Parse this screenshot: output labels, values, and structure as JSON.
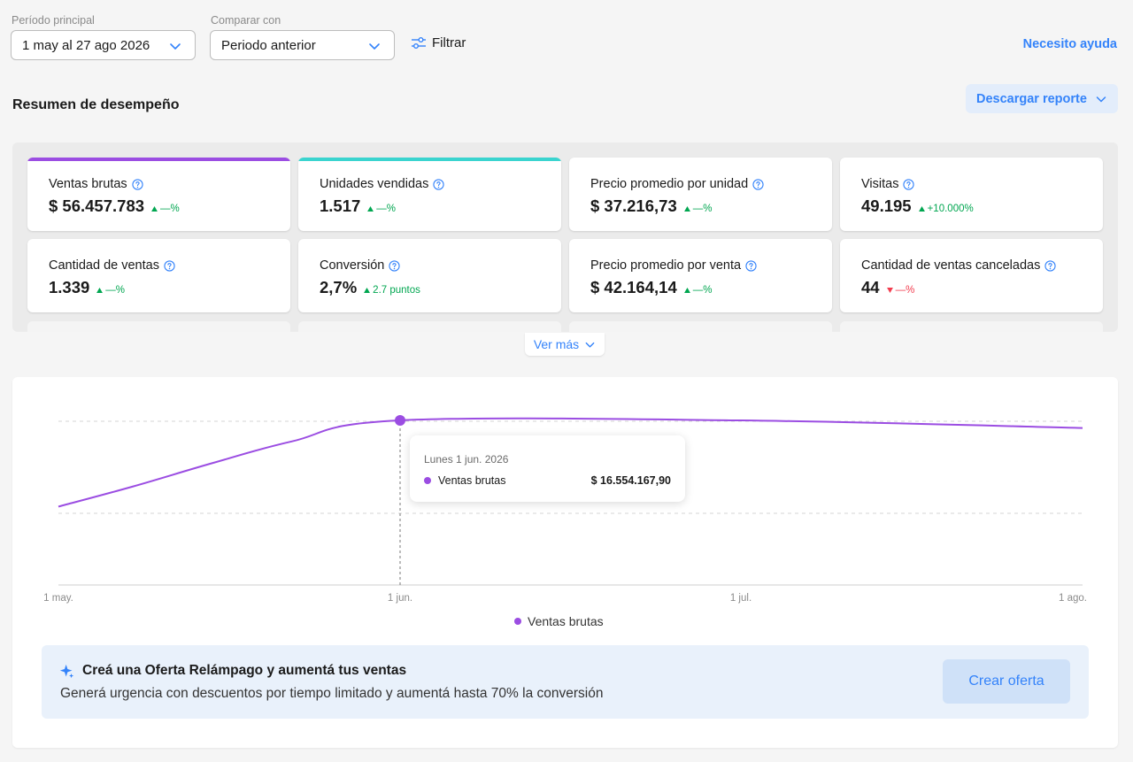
{
  "filters": {
    "period_label": "Período principal",
    "period_value": "1 may al 27 ago 2026",
    "compare_label": "Comparar con",
    "compare_value": "Periodo anterior",
    "filter_label": "Filtrar",
    "help_label": "Necesito ayuda"
  },
  "summary": {
    "title": "Resumen de desempeño",
    "download_label": "Descargar reporte"
  },
  "metrics": [
    {
      "label": "Ventas brutas",
      "value": "$ 56.457.783",
      "delta": "—%",
      "trend": "up",
      "accent": "#9b4de2"
    },
    {
      "label": "Unidades vendidas",
      "value": "1.517",
      "delta": "—%",
      "trend": "up",
      "accent": "#3ad4cf"
    },
    {
      "label": "Precio promedio por unidad",
      "value": "$ 37.216,73",
      "delta": "—%",
      "trend": "up",
      "accent": ""
    },
    {
      "label": "Visitas",
      "value": "49.195",
      "delta": "+10.000%",
      "trend": "up",
      "accent": ""
    },
    {
      "label": "Cantidad de ventas",
      "value": "1.339",
      "delta": "—%",
      "trend": "up",
      "accent": ""
    },
    {
      "label": "Conversión",
      "value": "2,7%",
      "delta": "2.7 puntos",
      "trend": "up",
      "accent": ""
    },
    {
      "label": "Precio promedio por venta",
      "value": "$ 42.164,14",
      "delta": "—%",
      "trend": "up",
      "accent": ""
    },
    {
      "label": "Cantidad de ventas canceladas",
      "value": "44",
      "delta": "—%",
      "trend": "down",
      "accent": ""
    }
  ],
  "ver_mas_label": "Ver más",
  "colors": {
    "up": "#00a650",
    "down": "#f23d4f",
    "link": "#3483fa",
    "series": "#9b4de2"
  },
  "chart_data": {
    "type": "line",
    "x_ticks": [
      "1 may.",
      "1 jun.",
      "1 jul.",
      "1 ago."
    ],
    "series": [
      {
        "name": "Ventas brutas",
        "color": "#9b4de2",
        "points": [
          {
            "x": "1 may.",
            "y": 11400000
          },
          {
            "x": "8 may.",
            "y": 12600000
          },
          {
            "x": "15 may.",
            "y": 14000000
          },
          {
            "x": "22 may.",
            "y": 15300000
          },
          {
            "x": "1 jun.",
            "y": 16554167.9
          },
          {
            "x": "1 jul.",
            "y": 16550000
          },
          {
            "x": "1 ago.",
            "y": 16100000
          }
        ]
      }
    ],
    "tooltip": {
      "date": "Lunes 1 jun. 2026",
      "series": "Ventas brutas",
      "value": "$ 16.554.167,90"
    },
    "grid": "horizontal dashed",
    "legend_position": "bottom"
  },
  "promo": {
    "title": "Creá una Oferta Relámpago y aumentá tus ventas",
    "description": "Generá urgencia con descuentos por tiempo limitado y aumentá hasta 70% la conversión",
    "button_label": "Crear oferta"
  }
}
